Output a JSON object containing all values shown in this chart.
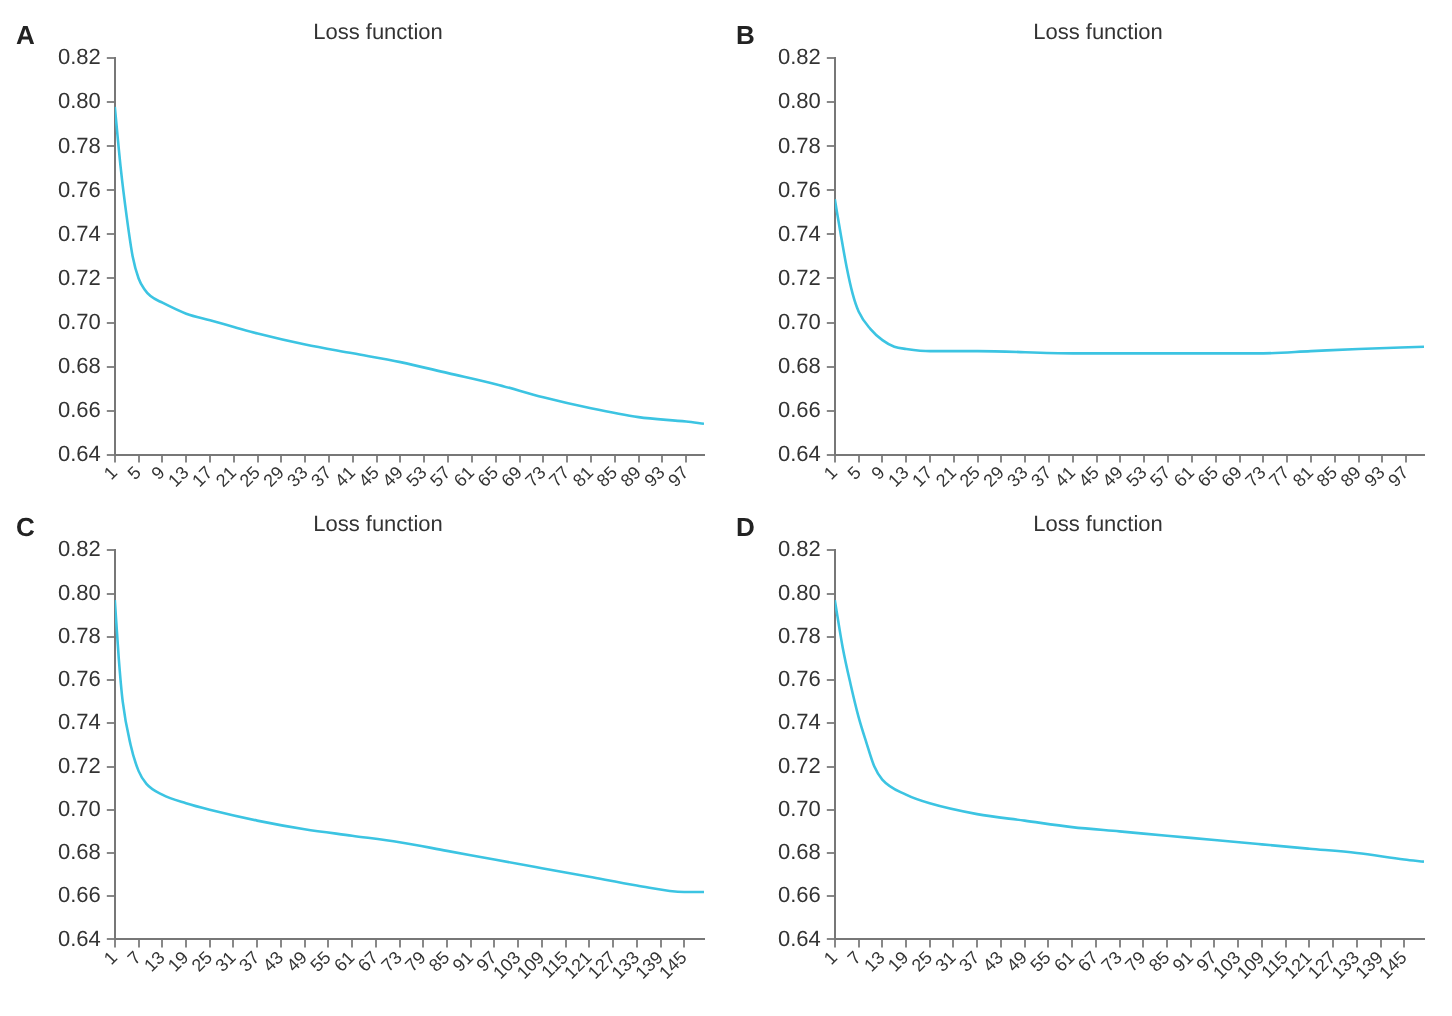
{
  "chart_data": [
    {
      "type": "line",
      "title": "Loss function",
      "annotations": [
        "A"
      ],
      "grid": false,
      "legend": false,
      "marker": "none",
      "xlim": [
        1,
        100
      ],
      "xticks": [
        1,
        5,
        9,
        13,
        17,
        21,
        25,
        29,
        33,
        37,
        41,
        45,
        49,
        53,
        57,
        61,
        65,
        69,
        73,
        77,
        81,
        85,
        89,
        93,
        97
      ],
      "ylim": [
        0.64,
        0.82
      ],
      "yticks": [
        {
          "value": 0.64,
          "label": "0.64"
        },
        {
          "value": 0.66,
          "label": "0.66"
        },
        {
          "value": 0.68,
          "label": "0.68"
        },
        {
          "value": 0.7,
          "label": "0.70"
        },
        {
          "value": 0.72,
          "label": "0.72"
        },
        {
          "value": 0.74,
          "label": "0.74"
        },
        {
          "value": 0.76,
          "label": "0.76"
        },
        {
          "value": 0.78,
          "label": "0.78"
        },
        {
          "value": 0.8,
          "label": "0.80"
        },
        {
          "value": 0.82,
          "label": "0.82"
        }
      ],
      "x": [
        1,
        2,
        3,
        4,
        5,
        6,
        7,
        9,
        13,
        17,
        21,
        25,
        33,
        41,
        49,
        57,
        65,
        73,
        81,
        89,
        97,
        100
      ],
      "series": [
        {
          "color": "#3cc4e2",
          "values": [
            0.798,
            0.77,
            0.748,
            0.73,
            0.72,
            0.715,
            0.712,
            0.709,
            0.704,
            0.701,
            0.698,
            0.695,
            0.69,
            0.686,
            0.682,
            0.677,
            0.672,
            0.666,
            0.661,
            0.657,
            0.655,
            0.654
          ]
        }
      ]
    },
    {
      "type": "line",
      "title": "Loss function",
      "annotations": [
        "B"
      ],
      "grid": false,
      "legend": false,
      "marker": "none",
      "xlim": [
        1,
        100
      ],
      "xticks": [
        1,
        5,
        9,
        13,
        17,
        21,
        25,
        29,
        33,
        37,
        41,
        45,
        49,
        53,
        57,
        61,
        65,
        69,
        73,
        77,
        81,
        85,
        89,
        93,
        97
      ],
      "ylim": [
        0.64,
        0.82
      ],
      "yticks": [
        {
          "value": 0.64,
          "label": "0.64"
        },
        {
          "value": 0.66,
          "label": "0.66"
        },
        {
          "value": 0.68,
          "label": "0.68"
        },
        {
          "value": 0.7,
          "label": "0.70"
        },
        {
          "value": 0.72,
          "label": "0.72"
        },
        {
          "value": 0.74,
          "label": "0.74"
        },
        {
          "value": 0.76,
          "label": "0.76"
        },
        {
          "value": 0.78,
          "label": "0.78"
        },
        {
          "value": 0.8,
          "label": "0.80"
        },
        {
          "value": 0.82,
          "label": "0.82"
        }
      ],
      "x": [
        1,
        2,
        3,
        4,
        5,
        7,
        9,
        11,
        13,
        17,
        25,
        41,
        61,
        73,
        81,
        89,
        100
      ],
      "series": [
        {
          "color": "#3cc4e2",
          "values": [
            0.756,
            0.74,
            0.725,
            0.713,
            0.705,
            0.697,
            0.692,
            0.689,
            0.688,
            0.687,
            0.687,
            0.686,
            0.686,
            0.686,
            0.687,
            0.688,
            0.689
          ]
        }
      ]
    },
    {
      "type": "line",
      "title": "Loss function",
      "annotations": [
        "C"
      ],
      "grid": false,
      "legend": false,
      "marker": "none",
      "xlim": [
        1,
        150
      ],
      "xticks": [
        1,
        7,
        13,
        19,
        25,
        31,
        37,
        43,
        49,
        55,
        61,
        67,
        73,
        79,
        85,
        91,
        97,
        103,
        109,
        115,
        121,
        127,
        133,
        139,
        145
      ],
      "ylim": [
        0.64,
        0.82
      ],
      "yticks": [
        {
          "value": 0.64,
          "label": "0.64"
        },
        {
          "value": 0.66,
          "label": "0.66"
        },
        {
          "value": 0.68,
          "label": "0.68"
        },
        {
          "value": 0.7,
          "label": "0.70"
        },
        {
          "value": 0.72,
          "label": "0.72"
        },
        {
          "value": 0.74,
          "label": "0.74"
        },
        {
          "value": 0.76,
          "label": "0.76"
        },
        {
          "value": 0.78,
          "label": "0.78"
        },
        {
          "value": 0.8,
          "label": "0.80"
        },
        {
          "value": 0.82,
          "label": "0.82"
        }
      ],
      "x": [
        1,
        2,
        3,
        5,
        7,
        9,
        13,
        19,
        25,
        37,
        49,
        61,
        73,
        85,
        97,
        109,
        121,
        133,
        145,
        150
      ],
      "series": [
        {
          "color": "#3cc4e2",
          "values": [
            0.797,
            0.77,
            0.75,
            0.73,
            0.718,
            0.712,
            0.707,
            0.703,
            0.7,
            0.695,
            0.691,
            0.688,
            0.685,
            0.681,
            0.677,
            0.673,
            0.669,
            0.665,
            0.662,
            0.662
          ]
        }
      ]
    },
    {
      "type": "line",
      "title": "Loss function",
      "annotations": [
        "D"
      ],
      "grid": false,
      "legend": false,
      "marker": "none",
      "xlim": [
        1,
        150
      ],
      "xticks": [
        1,
        7,
        13,
        19,
        25,
        31,
        37,
        43,
        49,
        55,
        61,
        67,
        73,
        79,
        85,
        91,
        97,
        103,
        109,
        115,
        121,
        127,
        133,
        139,
        145
      ],
      "ylim": [
        0.64,
        0.82
      ],
      "yticks": [
        {
          "value": 0.64,
          "label": "0.64"
        },
        {
          "value": 0.66,
          "label": "0.66"
        },
        {
          "value": 0.68,
          "label": "0.68"
        },
        {
          "value": 0.7,
          "label": "0.70"
        },
        {
          "value": 0.72,
          "label": "0.72"
        },
        {
          "value": 0.74,
          "label": "0.74"
        },
        {
          "value": 0.76,
          "label": "0.76"
        },
        {
          "value": 0.78,
          "label": "0.78"
        },
        {
          "value": 0.8,
          "label": "0.80"
        },
        {
          "value": 0.82,
          "label": "0.82"
        }
      ],
      "x": [
        1,
        3,
        5,
        7,
        9,
        11,
        13,
        19,
        25,
        37,
        49,
        61,
        73,
        85,
        97,
        109,
        121,
        133,
        145,
        150
      ],
      "series": [
        {
          "color": "#3cc4e2",
          "values": [
            0.797,
            0.775,
            0.758,
            0.743,
            0.731,
            0.72,
            0.714,
            0.707,
            0.703,
            0.698,
            0.695,
            0.692,
            0.69,
            0.688,
            0.686,
            0.684,
            0.682,
            0.68,
            0.677,
            0.676
          ]
        }
      ]
    }
  ]
}
